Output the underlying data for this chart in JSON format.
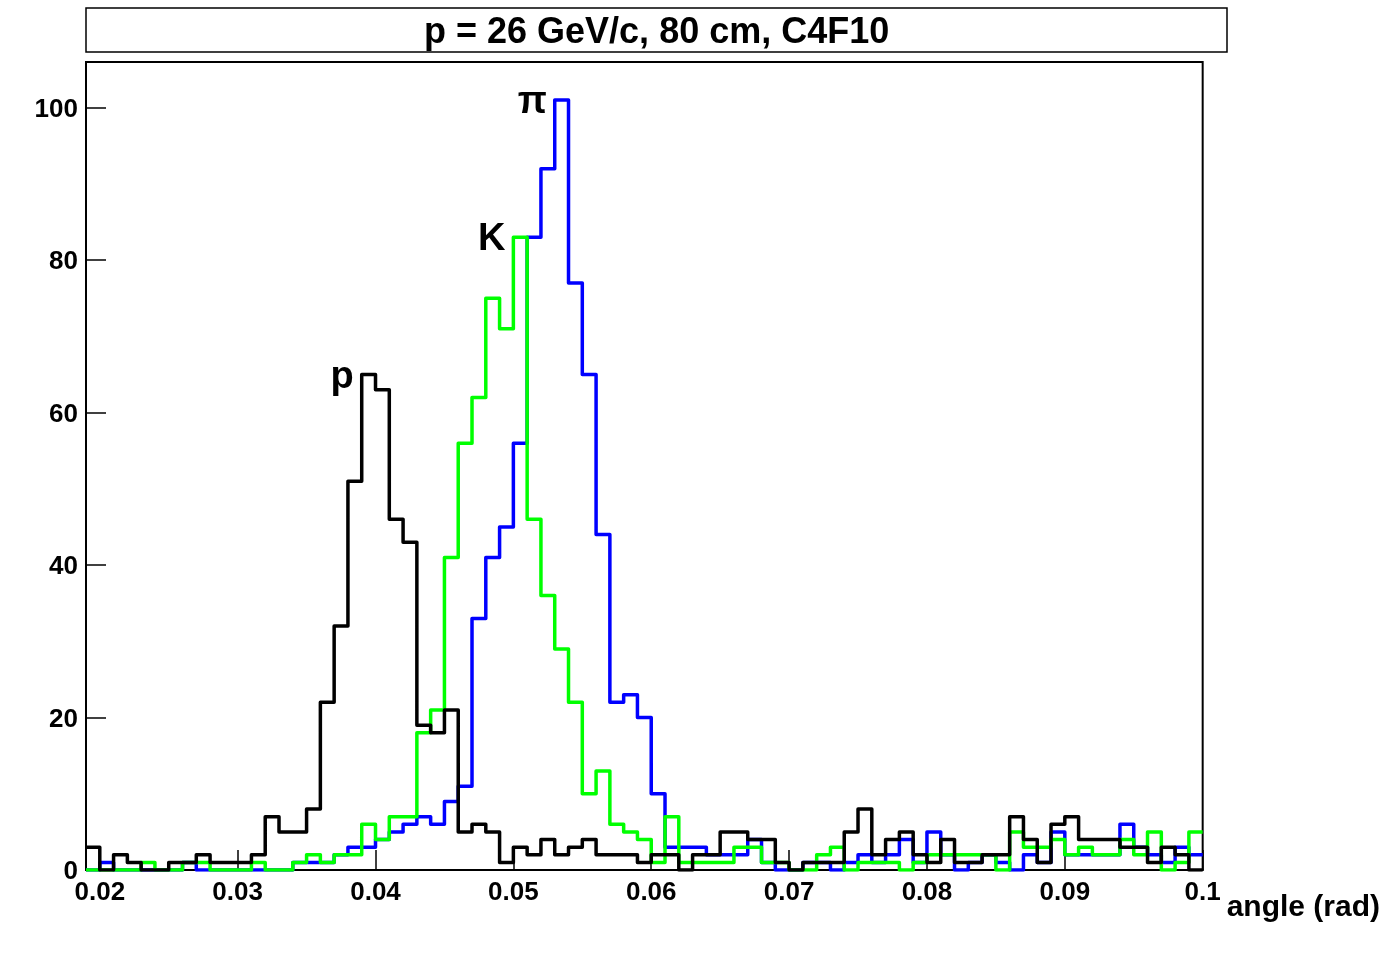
{
  "chart_data": {
    "type": "histogram",
    "title": "p = 26 GeV/c, 80 cm, C4F10",
    "xlabel": "angle (rad)",
    "bins": [
      0.019,
      0.02,
      0.021,
      0.022,
      0.023,
      0.024,
      0.025,
      0.026,
      0.027,
      0.028,
      0.029,
      0.03,
      0.031,
      0.032,
      0.033,
      0.034,
      0.035,
      0.036,
      0.037,
      0.038,
      0.039,
      0.04,
      0.041,
      0.042,
      0.043,
      0.044,
      0.045,
      0.046,
      0.047,
      0.048,
      0.049,
      0.05,
      0.051,
      0.052,
      0.053,
      0.054,
      0.055,
      0.056,
      0.057,
      0.058,
      0.059,
      0.06,
      0.061,
      0.062,
      0.063,
      0.064,
      0.065,
      0.066,
      0.067,
      0.068,
      0.069,
      0.07,
      0.071,
      0.072,
      0.073,
      0.074,
      0.075,
      0.076,
      0.077,
      0.078,
      0.079,
      0.08,
      0.081,
      0.082,
      0.083,
      0.084,
      0.085,
      0.086,
      0.087,
      0.088,
      0.089,
      0.09,
      0.091,
      0.092,
      0.093,
      0.094,
      0.095,
      0.096,
      0.097,
      0.098,
      0.099,
      0.1
    ],
    "series": [
      {
        "name": "π",
        "color": "#0000ff",
        "values": [
          0,
          1,
          0,
          0,
          0,
          0,
          0,
          1,
          0,
          0,
          0,
          0,
          0,
          0,
          0,
          1,
          1,
          1,
          2,
          3,
          3,
          4,
          5,
          6,
          7,
          6,
          9,
          11,
          33,
          41,
          45,
          56,
          83,
          92,
          101,
          77,
          65,
          44,
          22,
          23,
          20,
          10,
          3,
          3,
          3,
          2,
          2,
          2,
          4,
          1,
          0,
          0,
          1,
          1,
          0,
          1,
          2,
          1,
          2,
          4,
          1,
          5,
          2,
          0,
          1,
          2,
          1,
          0,
          2,
          1,
          5,
          2,
          2,
          2,
          2,
          6,
          3,
          2,
          1,
          3,
          2
        ]
      },
      {
        "name": "K",
        "color": "#00ff00",
        "values": [
          0,
          0,
          0,
          0,
          1,
          0,
          0,
          1,
          1,
          0,
          0,
          0,
          1,
          0,
          0,
          1,
          2,
          1,
          2,
          2,
          6,
          4,
          7,
          7,
          18,
          21,
          41,
          56,
          62,
          75,
          71,
          83,
          46,
          36,
          29,
          22,
          10,
          13,
          6,
          5,
          4,
          1,
          7,
          1,
          1,
          1,
          1,
          3,
          3,
          1,
          1,
          0,
          0,
          2,
          3,
          0,
          1,
          1,
          1,
          0,
          1,
          2,
          2,
          2,
          2,
          2,
          0,
          5,
          3,
          3,
          4,
          2,
          3,
          2,
          2,
          4,
          2,
          5,
          0,
          1,
          5
        ]
      },
      {
        "name": "p",
        "color": "#000000",
        "values": [
          3,
          0,
          2,
          1,
          0,
          0,
          1,
          1,
          2,
          1,
          1,
          1,
          2,
          7,
          5,
          5,
          8,
          22,
          32,
          51,
          65,
          63,
          46,
          43,
          19,
          18,
          21,
          5,
          6,
          5,
          1,
          3,
          2,
          4,
          2,
          3,
          4,
          2,
          2,
          2,
          1,
          2,
          2,
          0,
          2,
          2,
          5,
          5,
          4,
          4,
          1,
          0,
          1,
          1,
          1,
          5,
          8,
          2,
          4,
          5,
          2,
          1,
          4,
          1,
          1,
          2,
          2,
          7,
          4,
          1,
          6,
          7,
          4,
          4,
          4,
          3,
          3,
          1,
          3,
          2,
          0
        ]
      }
    ],
    "xlim": [
      0.019,
      0.1
    ],
    "xticks": [
      0.02,
      0.03,
      0.04,
      0.05,
      0.06,
      0.07,
      0.08,
      0.09,
      0.1
    ],
    "ylim": [
      0,
      106
    ],
    "yticks": [
      0,
      20,
      40,
      60,
      80,
      100
    ]
  }
}
